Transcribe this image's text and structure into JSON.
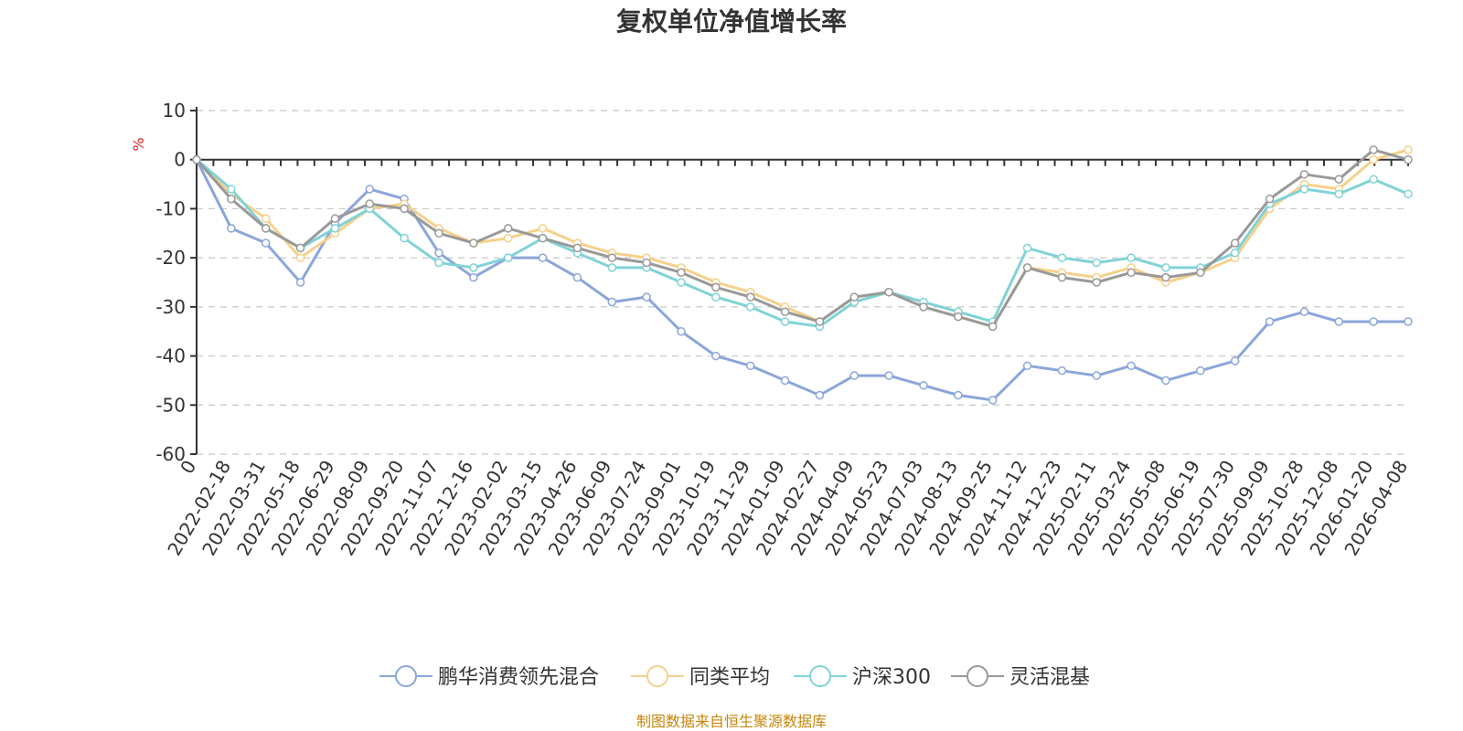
{
  "chart_data": {
    "type": "line",
    "title": "复权单位净值增长率",
    "ylabel": "%",
    "ylim": [
      -60,
      10
    ],
    "yticks": [
      10,
      0,
      -10,
      -20,
      -30,
      -40,
      -50,
      -60
    ],
    "xlabel": "",
    "categories": [
      "0",
      "2022-02-18",
      "2022-03-31",
      "2022-05-18",
      "2022-06-29",
      "2022-08-09",
      "2022-09-20",
      "2022-11-07",
      "2022-12-16",
      "2023-02-02",
      "2023-03-15",
      "2023-04-26",
      "2023-06-09",
      "2023-07-24",
      "2023-09-01",
      "2023-10-19",
      "2023-11-29",
      "2024-01-09",
      "2024-02-27",
      "2024-04-09",
      "2024-05-23",
      "2024-07-03",
      "2024-08-13",
      "2024-09-25",
      "2024-11-12",
      "2024-12-23",
      "2025-02-11",
      "2025-03-24",
      "2025-05-08",
      "2025-06-19",
      "2025-07-30",
      "2025-09-09",
      "2025-10-28",
      "2025-12-08",
      "2026-01-20",
      "2026-04-08"
    ],
    "series": [
      {
        "name": "鹏华消费领先混合",
        "color": "#8ba6d9",
        "values": [
          0,
          -14,
          -17,
          -25,
          -13,
          -6,
          -8,
          -19,
          -24,
          -20,
          -20,
          -24,
          -29,
          -28,
          -35,
          -40,
          -42,
          -45,
          -48,
          -44,
          -44,
          -46,
          -48,
          -49,
          -42,
          -43,
          -44,
          -42,
          -45,
          -43,
          -41,
          -33,
          -31,
          -33,
          -33,
          -33
        ]
      },
      {
        "name": "同类平均",
        "color": "#f7d08a",
        "values": [
          0,
          -7,
          -12,
          -20,
          -15,
          -10,
          -9,
          -14,
          -17,
          -16,
          -14,
          -17,
          -19,
          -20,
          -22,
          -25,
          -27,
          -30,
          -33,
          -28,
          -27,
          -30,
          -32,
          -34,
          -22,
          -23,
          -24,
          -22,
          -25,
          -23,
          -20,
          -10,
          -5,
          -6,
          0,
          2
        ]
      },
      {
        "name": "沪深300",
        "color": "#7fd3d6",
        "values": [
          0,
          -6,
          -14,
          -18,
          -14,
          -10,
          -16,
          -21,
          -22,
          -20,
          -16,
          -19,
          -22,
          -22,
          -25,
          -28,
          -30,
          -33,
          -34,
          -29,
          -27,
          -29,
          -31,
          -33,
          -18,
          -20,
          -21,
          -20,
          -22,
          -22,
          -19,
          -9,
          -6,
          -7,
          -4,
          -7
        ]
      },
      {
        "name": "灵活混基",
        "color": "#999999",
        "values": [
          0,
          -8,
          -14,
          -18,
          -12,
          -9,
          -10,
          -15,
          -17,
          -14,
          -16,
          -18,
          -20,
          -21,
          -23,
          -26,
          -28,
          -31,
          -33,
          -28,
          -27,
          -30,
          -32,
          -34,
          -22,
          -24,
          -25,
          -23,
          -24,
          -23,
          -17,
          -8,
          -3,
          -4,
          2,
          0
        ]
      }
    ]
  },
  "source_text": "制图数据来自恒生聚源数据库"
}
